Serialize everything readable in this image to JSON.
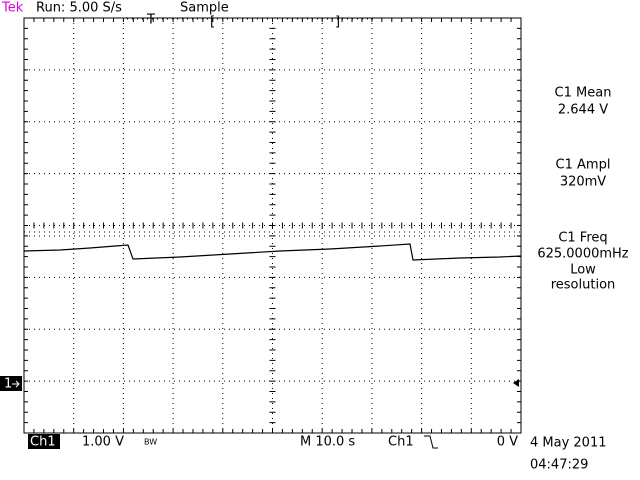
{
  "header": {
    "brand": "Tek",
    "status": "Run: 5.00 S/s",
    "mode": "Sample",
    "trigger_position": "T",
    "record_start": "[",
    "record_end": "]"
  },
  "measurements": [
    {
      "label": "C1 Mean",
      "value": "2.644 V"
    },
    {
      "label": "C1 Ampl",
      "value": "320mV"
    },
    {
      "label": "C1 Freq",
      "value": "625.0000mHz",
      "note": [
        "Low",
        "resolution"
      ]
    }
  ],
  "channel_marker": "1",
  "footer": {
    "channel": "Ch1",
    "scale": "1.00 V",
    "bandwidth": "BW",
    "timebase": "M 10.0 s",
    "trigger_source": "Ch1",
    "trigger_level": "0 V",
    "date": "4 May 2011",
    "time": "04:47:29"
  }
}
